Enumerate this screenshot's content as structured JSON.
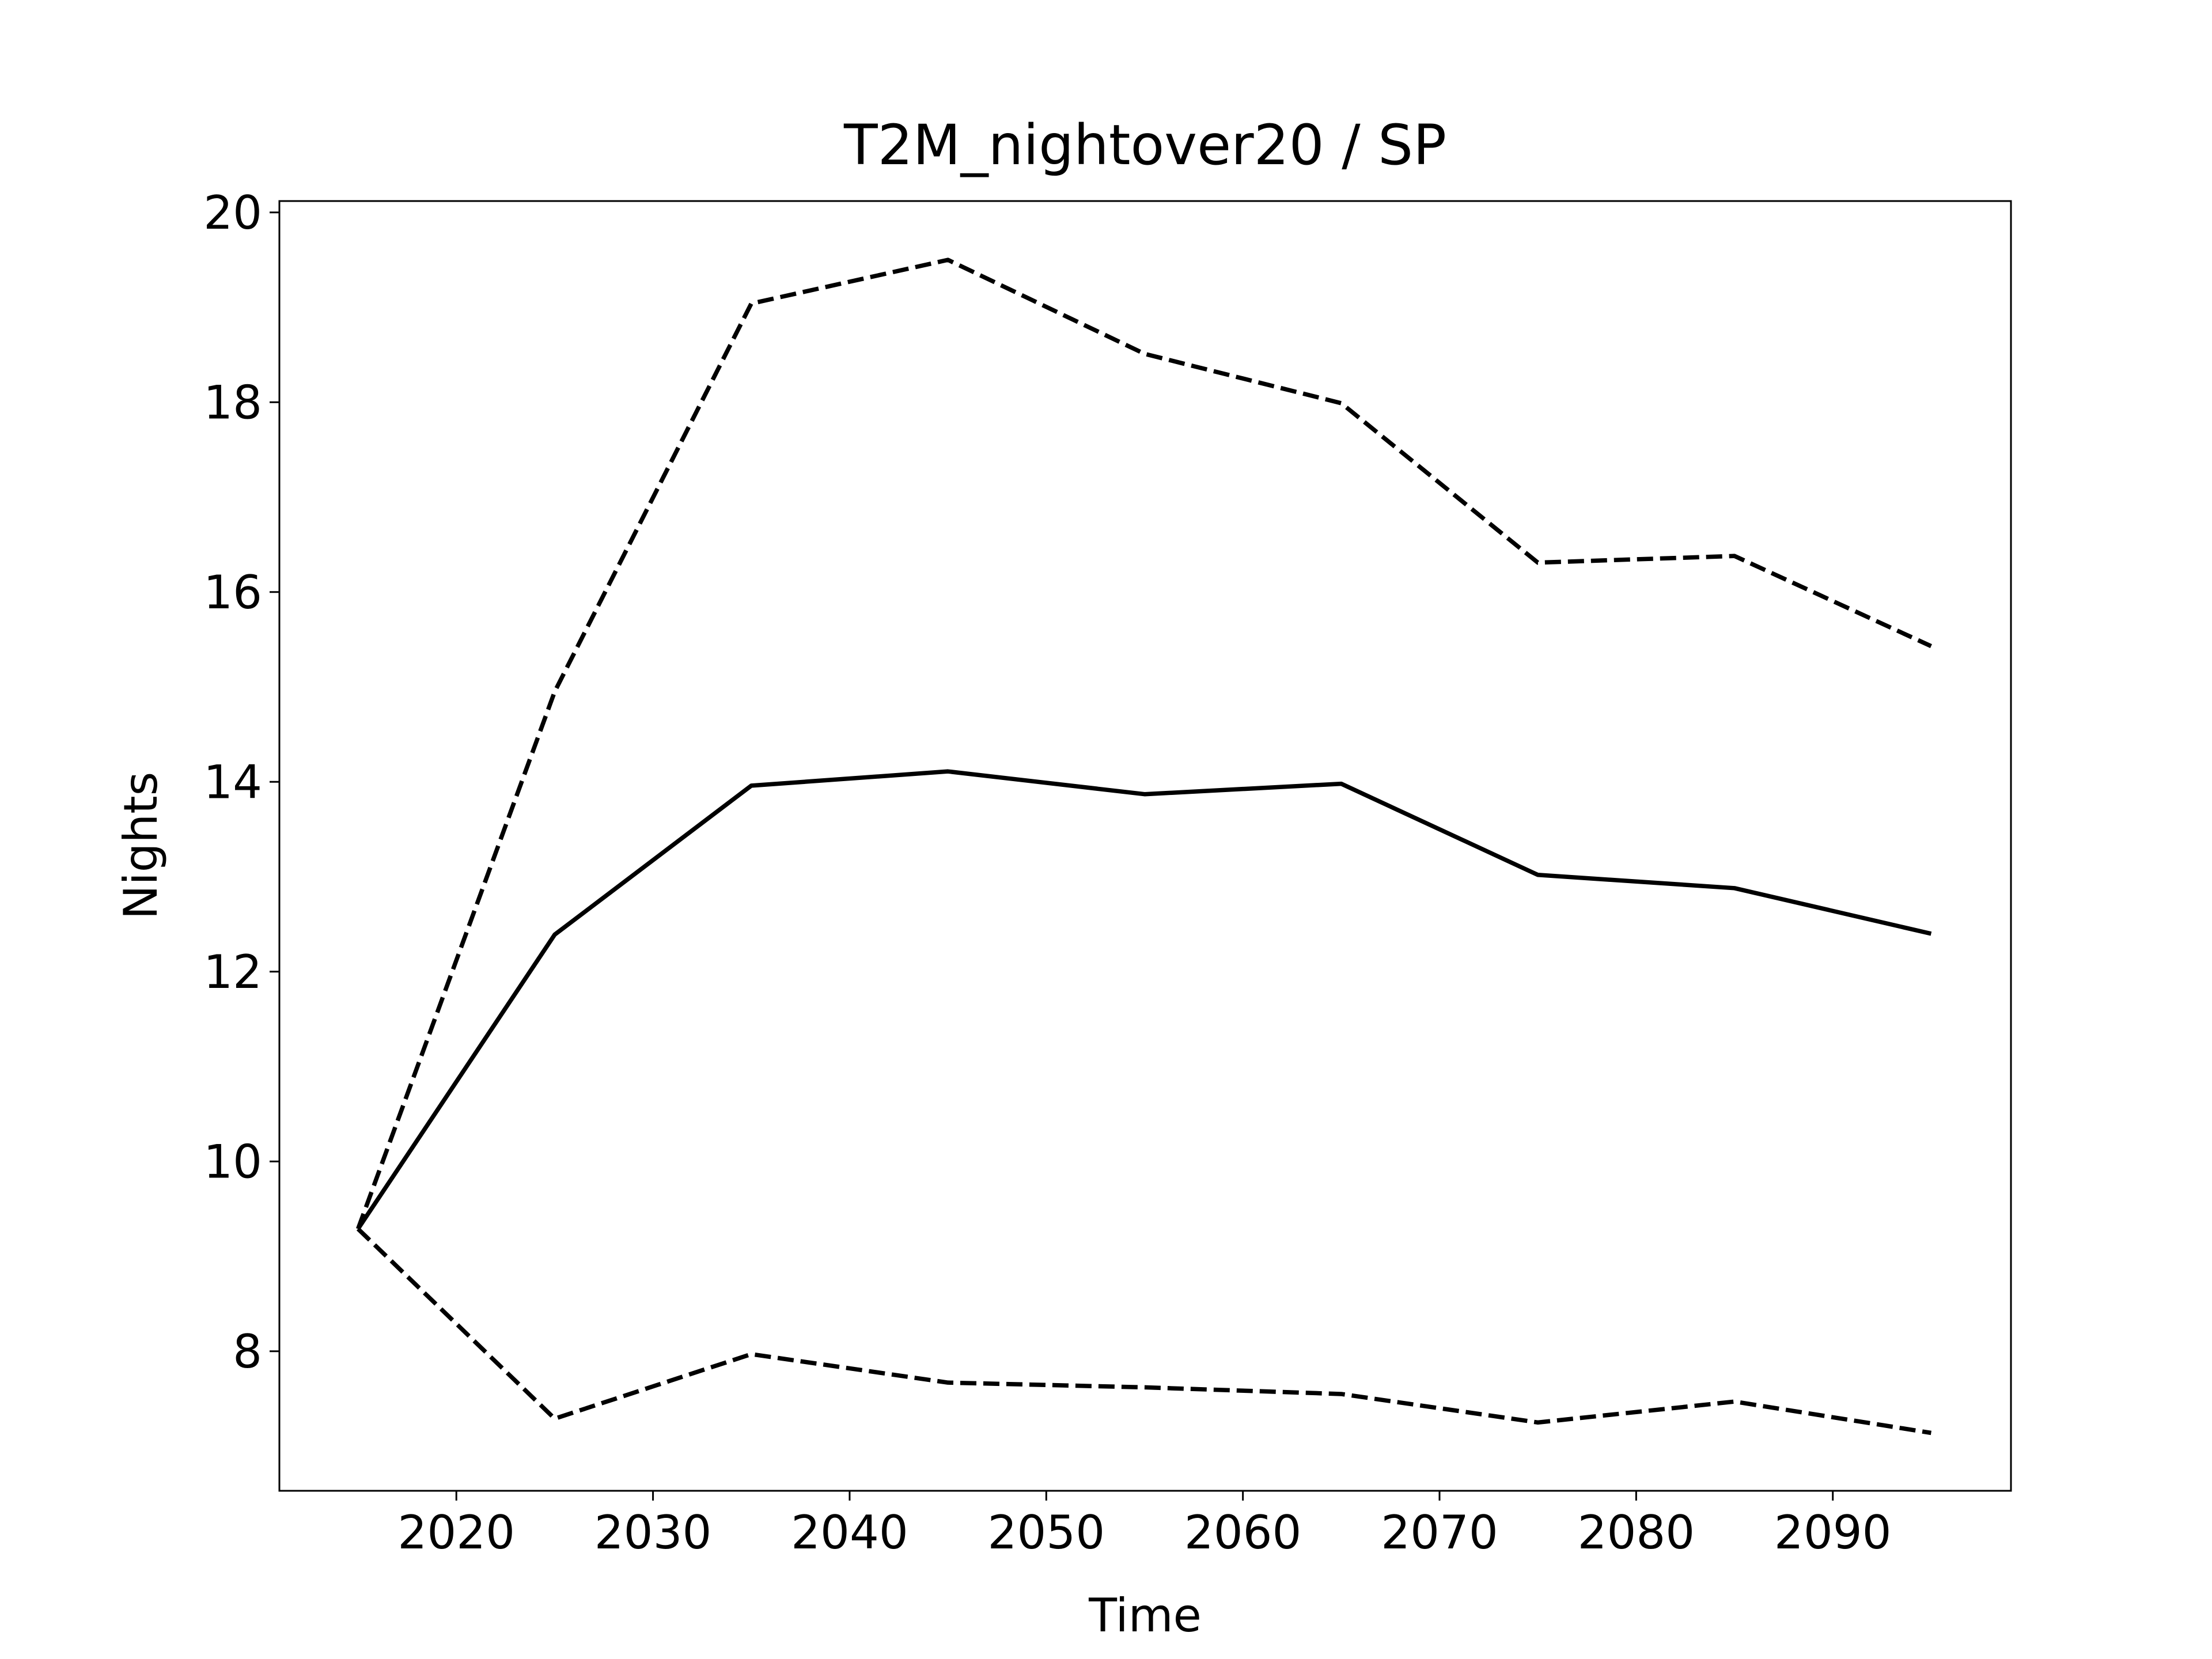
{
  "chart_data": {
    "type": "line",
    "title": "T2M_nightover20 / SP",
    "xlabel": "Time",
    "ylabel": "Nights",
    "x": [
      2015,
      2025,
      2035,
      2045,
      2055,
      2065,
      2075,
      2085,
      2095
    ],
    "series": [
      {
        "color": "#000000",
        "dashed": false,
        "values": [
          9.29,
          12.39,
          13.96,
          14.11,
          13.87,
          13.98,
          13.02,
          12.88,
          12.4
        ]
      },
      {
        "color": "#000000",
        "dashed": true,
        "values": [
          9.29,
          14.95,
          19.04,
          19.5,
          18.51,
          17.99,
          16.31,
          16.38,
          15.43
        ]
      },
      {
        "color": "#000000",
        "dashed": true,
        "values": [
          9.29,
          7.29,
          7.97,
          7.67,
          7.62,
          7.55,
          7.25,
          7.47,
          7.14
        ]
      }
    ],
    "xlim": [
      2011,
      2099.06
    ],
    "ylim": [
      6.53,
      20.12
    ],
    "xticks": [
      2020,
      2030,
      2040,
      2050,
      2060,
      2070,
      2080,
      2090
    ],
    "yticks": [
      8,
      10,
      12,
      14,
      16,
      18,
      20
    ]
  }
}
